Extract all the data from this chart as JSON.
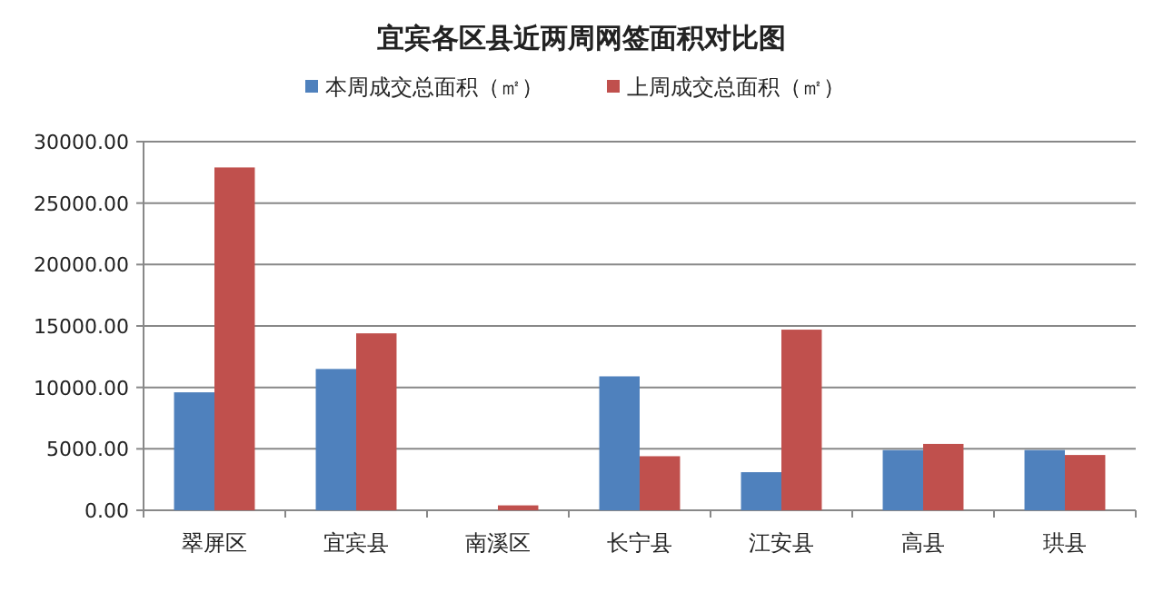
{
  "chart_data": {
    "type": "bar",
    "title": "宜宾各区县近两周网签面积对比图",
    "categories": [
      "翠屏区",
      "宜宾县",
      "南溪区",
      "长宁县",
      "江安县",
      "高县",
      "珙县"
    ],
    "series": [
      {
        "name": "本周成交总面积（㎡）",
        "color": "#4f81bd",
        "values": [
          9600,
          11500,
          0,
          10900,
          3100,
          4900,
          4900
        ]
      },
      {
        "name": "上周成交总面积（㎡）",
        "color": "#c0504d",
        "values": [
          27900,
          14400,
          400,
          4400,
          14700,
          5400,
          4500
        ]
      }
    ],
    "ylim": [
      0,
      30000
    ],
    "yticks": [
      {
        "value": 0,
        "label": "0.00"
      },
      {
        "value": 5000,
        "label": "5000.00"
      },
      {
        "value": 10000,
        "label": "10000.00"
      },
      {
        "value": 15000,
        "label": "15000.00"
      },
      {
        "value": 20000,
        "label": "20000.00"
      },
      {
        "value": 25000,
        "label": "25000.00"
      },
      {
        "value": 30000,
        "label": "30000.00"
      }
    ],
    "grid": "y",
    "legend": "top"
  }
}
